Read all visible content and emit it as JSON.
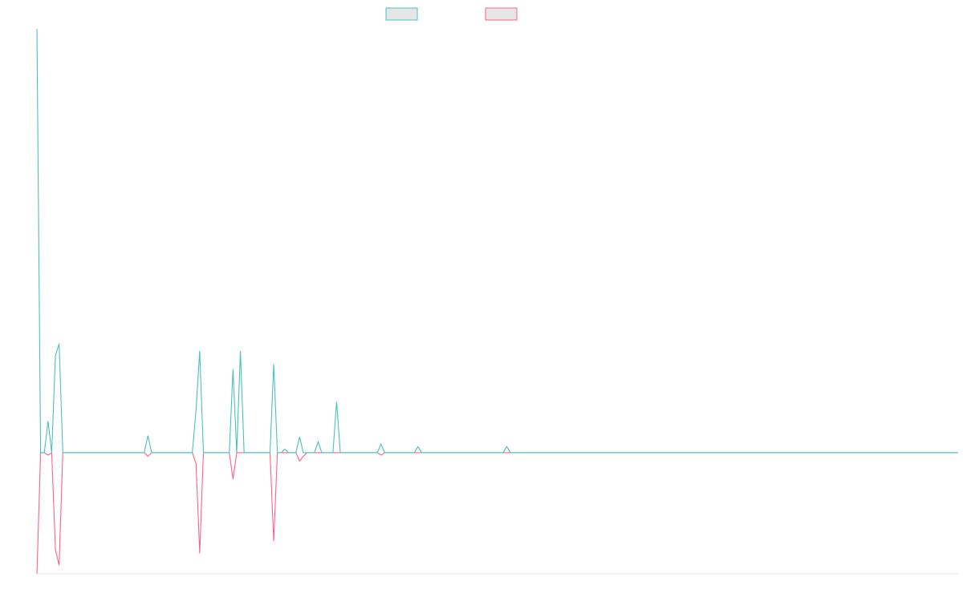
{
  "chart_data": {
    "type": "line",
    "title": "",
    "xlabel": "",
    "ylabel": "",
    "legend": {
      "placement": "top-center",
      "entries": [
        {
          "name": "",
          "color": "#4bc0c0"
        },
        {
          "name": "",
          "color": "#ff6384"
        }
      ]
    },
    "grid": false,
    "x_count": 250,
    "ylim": [
      -10,
      35
    ],
    "series": [
      {
        "name": "",
        "color": "#4bc0c0",
        "points": [
          [
            0,
            35
          ],
          [
            1,
            0
          ],
          [
            2,
            0
          ],
          [
            3,
            2.6
          ],
          [
            4,
            0
          ],
          [
            5,
            8
          ],
          [
            6,
            9
          ],
          [
            7,
            0
          ],
          [
            29,
            0
          ],
          [
            30,
            1.4
          ],
          [
            31,
            0
          ],
          [
            42,
            0
          ],
          [
            43,
            3.5
          ],
          [
            44,
            8.4
          ],
          [
            45,
            0
          ],
          [
            52,
            0
          ],
          [
            53,
            6.9
          ],
          [
            54,
            0
          ],
          [
            55,
            8.4
          ],
          [
            56,
            0
          ],
          [
            63,
            0
          ],
          [
            64,
            7.3
          ],
          [
            65,
            0
          ],
          [
            66,
            0
          ],
          [
            67,
            0.3
          ],
          [
            68,
            0
          ],
          [
            70,
            0
          ],
          [
            71,
            1.3
          ],
          [
            72,
            0
          ],
          [
            75,
            0
          ],
          [
            76,
            0.9
          ],
          [
            77,
            0
          ],
          [
            80,
            0
          ],
          [
            81,
            4.2
          ],
          [
            82,
            0
          ],
          [
            92,
            0
          ],
          [
            93,
            0.7
          ],
          [
            94,
            0
          ],
          [
            102,
            0
          ],
          [
            103,
            0.5
          ],
          [
            104,
            0
          ],
          [
            126,
            0
          ],
          [
            127,
            0.5
          ],
          [
            128,
            0
          ],
          [
            249,
            0
          ]
        ]
      },
      {
        "name": "",
        "color": "#ff6384",
        "points": [
          [
            0,
            -10
          ],
          [
            1,
            0
          ],
          [
            2,
            0
          ],
          [
            3,
            -0.2
          ],
          [
            4,
            0
          ],
          [
            5,
            -8
          ],
          [
            6,
            -9.3
          ],
          [
            7,
            0
          ],
          [
            29,
            0
          ],
          [
            30,
            -0.3
          ],
          [
            31,
            0
          ],
          [
            42,
            0
          ],
          [
            43,
            -0.9
          ],
          [
            44,
            -8.3
          ],
          [
            45,
            0
          ],
          [
            52,
            0
          ],
          [
            53,
            -2.2
          ],
          [
            54,
            0
          ],
          [
            63,
            0
          ],
          [
            64,
            -7.3
          ],
          [
            65,
            0
          ],
          [
            70,
            0
          ],
          [
            71,
            -0.7
          ],
          [
            72,
            -0.3
          ],
          [
            73,
            0
          ],
          [
            92,
            0
          ],
          [
            93,
            -0.2
          ],
          [
            94,
            0
          ],
          [
            249,
            0
          ]
        ]
      }
    ]
  }
}
